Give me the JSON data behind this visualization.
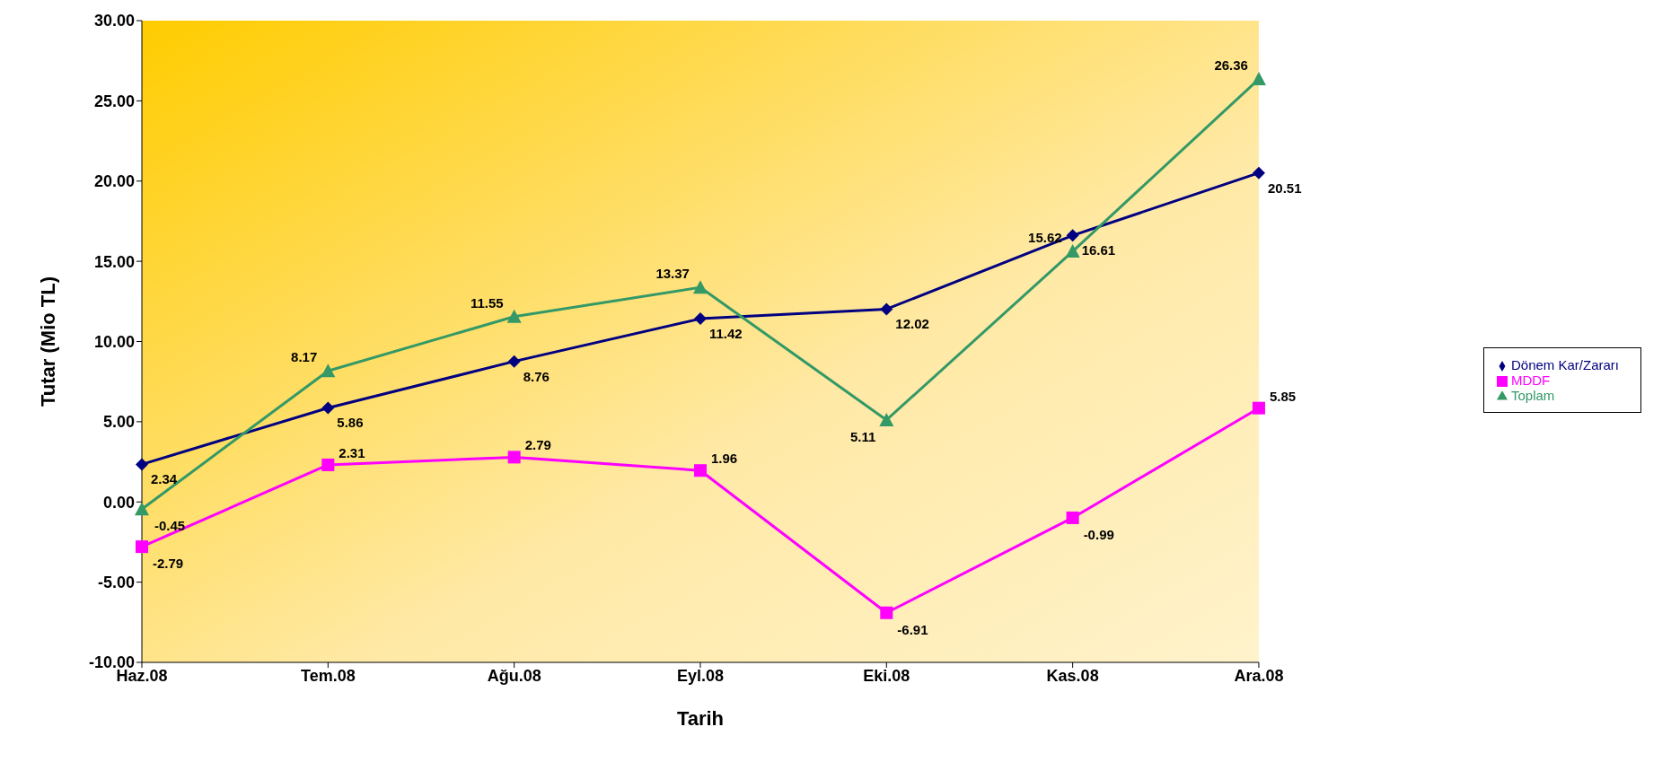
{
  "chart_data": {
    "type": "line",
    "xlabel": "Tarih",
    "ylabel": "Tutar (Mio TL)",
    "categories": [
      "Haz.08",
      "Tem.08",
      "Ağu.08",
      "Eyl.08",
      "Eki.08",
      "Kas.08",
      "Ara.08"
    ],
    "series": [
      {
        "name": "Dönem Kar/Zararı",
        "color": "#000080",
        "marker": "diamond",
        "values": [
          2.34,
          5.86,
          8.76,
          11.42,
          12.02,
          16.61,
          20.51
        ]
      },
      {
        "name": "MDDF",
        "color": "#ff00ff",
        "marker": "square",
        "values": [
          -2.79,
          2.31,
          2.79,
          1.96,
          -6.91,
          -0.99,
          5.85
        ]
      },
      {
        "name": "Toplam",
        "color": "#339966",
        "marker": "triangle",
        "values": [
          -0.45,
          8.17,
          11.55,
          13.37,
          5.11,
          15.62,
          26.36
        ]
      }
    ],
    "ylim": [
      -10,
      30
    ],
    "yticks": [
      {
        "value": -10,
        "label": "-10.00"
      },
      {
        "value": -5,
        "label": "-5.00"
      },
      {
        "value": 0,
        "label": "0.00"
      },
      {
        "value": 5,
        "label": "5.00"
      },
      {
        "value": 10,
        "label": "10.00"
      },
      {
        "value": 15,
        "label": "15.00"
      },
      {
        "value": 20,
        "label": "20.00"
      },
      {
        "value": 25,
        "label": "25.00"
      },
      {
        "value": 30,
        "label": "30.00"
      }
    ],
    "data_labels": true,
    "legend": "right",
    "grid": false,
    "line_style": "solid"
  }
}
